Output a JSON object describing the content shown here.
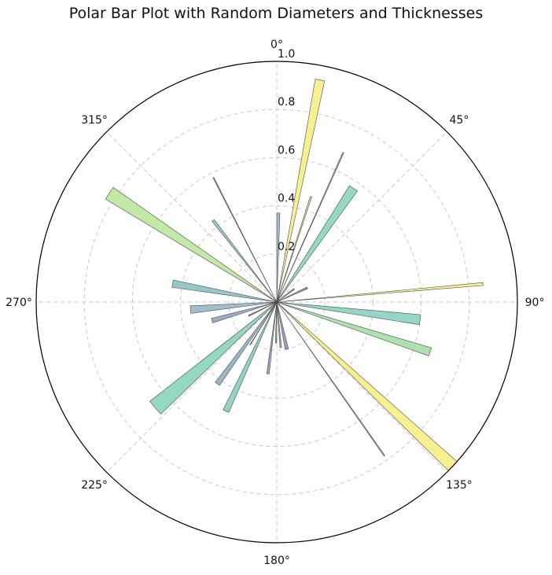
{
  "chart_data": {
    "type": "bar",
    "projection": "polar",
    "title": "Polar Bar Plot with Random Diameters and Thicknesses",
    "theta_zero": "north",
    "theta_direction": "clockwise",
    "theta_ticks": [
      "0°",
      "45°",
      "90°",
      "135°",
      "180°",
      "225°",
      "270°",
      "315°"
    ],
    "theta_tick_values": [
      0,
      45,
      90,
      135,
      180,
      225,
      270,
      315
    ],
    "r_ticks": [
      "0.2",
      "0.4",
      "0.6",
      "0.8",
      "1.0"
    ],
    "r_tick_values": [
      0.2,
      0.4,
      0.6,
      0.8,
      1.0
    ],
    "rlim": [
      0,
      1.0
    ],
    "grid": true,
    "bars": [
      {
        "theta": 1,
        "r": 0.37,
        "width": 2.0,
        "color": "#9AB9C4"
      },
      {
        "theta": 11,
        "r": 0.94,
        "width": 2.4,
        "color": "#F7EF8A"
      },
      {
        "theta": 18,
        "r": 0.46,
        "width": 0.8,
        "color": "#E6E091"
      },
      {
        "theta": 24,
        "r": 0.68,
        "width": 0.4,
        "color": "#7FB7A4"
      },
      {
        "theta": 34,
        "r": 0.57,
        "width": 4.0,
        "color": "#8FD7C0"
      },
      {
        "theta": 53,
        "r": 0.09,
        "width": 3.0,
        "color": "#9A8DB6"
      },
      {
        "theta": 65,
        "r": 0.14,
        "width": 3.0,
        "color": "#9A8DB6"
      },
      {
        "theta": 85,
        "r": 0.86,
        "width": 0.8,
        "color": "#F2EB8A"
      },
      {
        "theta": 97,
        "r": 0.6,
        "width": 4.0,
        "color": "#8FD5C2"
      },
      {
        "theta": 108,
        "r": 0.67,
        "width": 3.0,
        "color": "#A9E0AA"
      },
      {
        "theta": 133,
        "r": 1.0,
        "width": 3.0,
        "color": "#F7EF8A"
      },
      {
        "theta": 145,
        "r": 0.78,
        "width": 0.3,
        "color": "#8C9E8A"
      },
      {
        "theta": 168,
        "r": 0.2,
        "width": 4.0,
        "color": "#9A9AC0"
      },
      {
        "theta": 175,
        "r": 0.19,
        "width": 2.0,
        "color": "#A7A7CA"
      },
      {
        "theta": 181,
        "r": 0.17,
        "width": 2.0,
        "color": "#9A9AC0"
      },
      {
        "theta": 187,
        "r": 0.3,
        "width": 2.0,
        "color": "#9A9EC2"
      },
      {
        "theta": 205,
        "r": 0.5,
        "width": 3.0,
        "color": "#8DD0C2"
      },
      {
        "theta": 212,
        "r": 0.21,
        "width": 0.6,
        "color": "#8E87A8"
      },
      {
        "theta": 216,
        "r": 0.42,
        "width": 3.0,
        "color": "#97B1C4"
      },
      {
        "theta": 229,
        "r": 0.67,
        "width": 6.0,
        "color": "#8FD6BE"
      },
      {
        "theta": 244,
        "r": 0.13,
        "width": 2.0,
        "color": "#8E87A8"
      },
      {
        "theta": 254,
        "r": 0.28,
        "width": 4.0,
        "color": "#9AA6C0"
      },
      {
        "theta": 265,
        "r": 0.36,
        "width": 5.0,
        "color": "#9CBCC6"
      },
      {
        "theta": 280,
        "r": 0.44,
        "width": 4.0,
        "color": "#92C4C4"
      },
      {
        "theta": 302,
        "r": 0.15,
        "width": 1.0,
        "color": "#9A8DB6"
      },
      {
        "theta": 303,
        "r": 0.83,
        "width": 4.0,
        "color": "#BFE8A0"
      },
      {
        "theta": 322,
        "r": 0.43,
        "width": 1.5,
        "color": "#95C7C8"
      },
      {
        "theta": 333,
        "r": 0.58,
        "width": 0.4,
        "color": "#7F9E9A"
      }
    ]
  }
}
